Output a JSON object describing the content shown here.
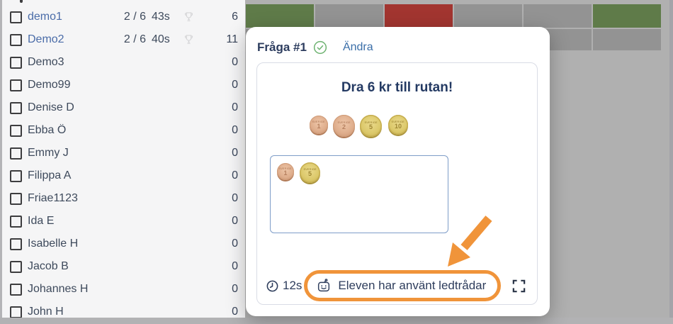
{
  "student_panel": {
    "rows": [
      {
        "name": "demo1",
        "link": true,
        "progress": "2 / 6",
        "time": "43s",
        "trophy": true,
        "score": "6"
      },
      {
        "name": "Demo2",
        "link": true,
        "progress": "2 / 6",
        "time": "40s",
        "trophy": true,
        "score": "11"
      },
      {
        "name": "Demo3",
        "score": "0"
      },
      {
        "name": "Demo99",
        "score": "0"
      },
      {
        "name": "Denise D",
        "score": "0"
      },
      {
        "name": "Ebba Ö",
        "score": "0"
      },
      {
        "name": "Emmy J",
        "score": "0"
      },
      {
        "name": "Filippa A",
        "score": "0"
      },
      {
        "name": "Friae1123",
        "score": "0"
      },
      {
        "name": "Ida E",
        "score": "0"
      },
      {
        "name": "Isabelle H",
        "score": "0"
      },
      {
        "name": "Jacob B",
        "score": "0"
      },
      {
        "name": "Johannes H",
        "score": "0"
      },
      {
        "name": "John H",
        "score": "0"
      }
    ]
  },
  "results_grid": {
    "cell_colors": {
      "green": "#5f7b49",
      "gray": "#939393",
      "red": "#a23530"
    },
    "rows": [
      {
        "cells": [
          "green",
          "gray",
          "red",
          "gray",
          "gray",
          "green"
        ]
      },
      {
        "cells": [
          "gray",
          "gray",
          "gray",
          "gray",
          "gray",
          "gray"
        ]
      }
    ]
  },
  "modal": {
    "title": "Fråga #1",
    "status_icon": "check-circle-icon",
    "edit_label": "Ändra",
    "question": "Dra 6 kr till rutan!",
    "coin_country_label": "SVERIGE",
    "coins_available": [
      {
        "value": "1",
        "metal": "copper"
      },
      {
        "value": "2",
        "metal": "copper"
      },
      {
        "value": "5",
        "metal": "gold"
      },
      {
        "value": "10",
        "metal": "gold"
      }
    ],
    "coins_in_box": [
      {
        "value": "1",
        "metal": "copper"
      },
      {
        "value": "5",
        "metal": "gold"
      }
    ],
    "timer": "12s",
    "timer_icon": "clock-icon",
    "hint_icon": "robot-icon",
    "hint_notice": "Eleven har använt ledtrådar",
    "expand_icon": "fullscreen-icon"
  },
  "annotation": {
    "arrow_color": "#f0943a",
    "highlight_color": "#f0943a"
  }
}
